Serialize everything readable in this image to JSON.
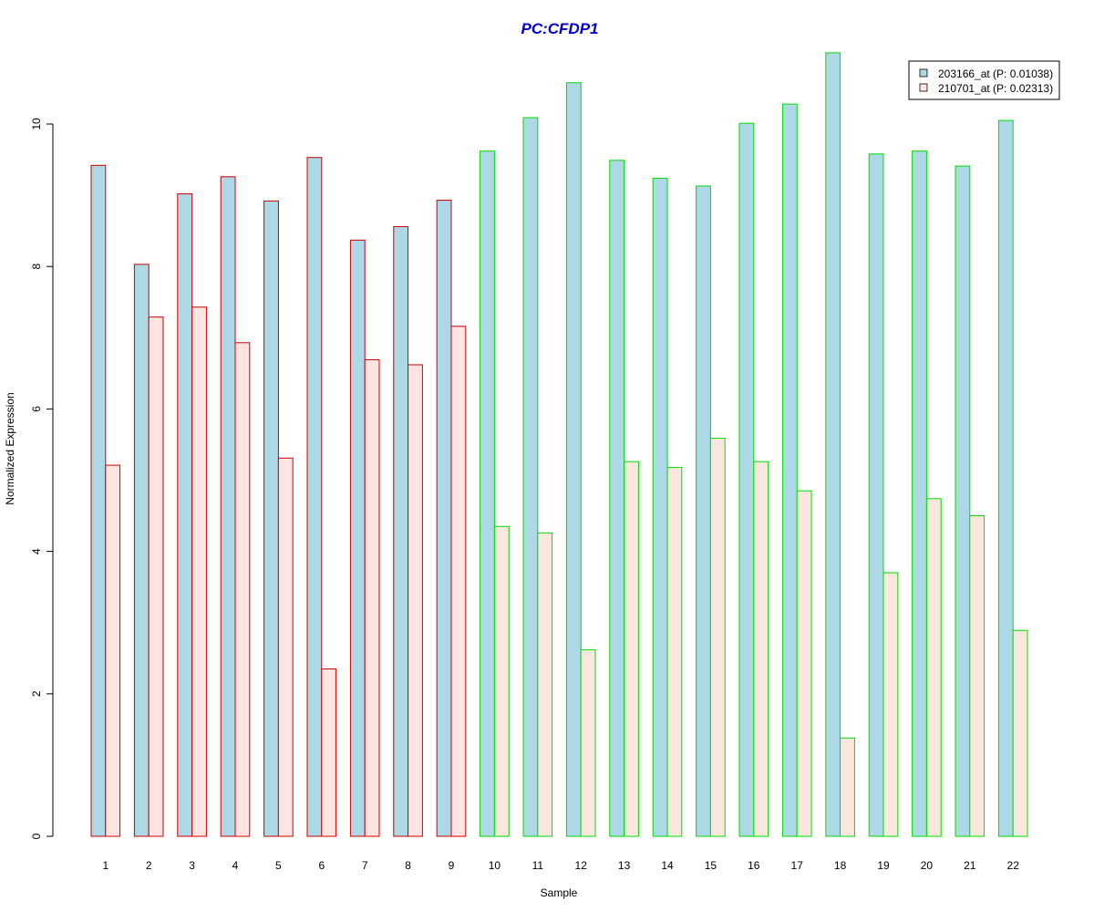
{
  "colors": {
    "title": "#0000cd",
    "series1_fill": "#add8e6",
    "series2_fill_group1": "#ffe4e1",
    "series2_fill_group2": "#fae8df",
    "group1_border": "#cc0000",
    "group2_border": "#00dd00",
    "axis": "#000000"
  },
  "chart_data": {
    "type": "bar",
    "title": "PC:CFDP1",
    "xlabel": "Sample",
    "ylabel": "Normalized Expression",
    "ylim": [
      0,
      11
    ],
    "yticks": [
      0,
      2,
      4,
      6,
      8,
      10
    ],
    "grid": false,
    "legend_position": "top-right",
    "categories": [
      "1",
      "2",
      "3",
      "4",
      "5",
      "6",
      "7",
      "8",
      "9",
      "10",
      "11",
      "12",
      "13",
      "14",
      "15",
      "16",
      "17",
      "18",
      "19",
      "20",
      "21",
      "22"
    ],
    "groups": [
      "group1",
      "group1",
      "group1",
      "group1",
      "group1",
      "group1",
      "group1",
      "group1",
      "group1",
      "group2",
      "group2",
      "group2",
      "group2",
      "group2",
      "group2",
      "group2",
      "group2",
      "group2",
      "group2",
      "group2",
      "group2",
      "group2"
    ],
    "series": [
      {
        "name": "203166_at (P: 0.01038)",
        "values": [
          9.42,
          8.03,
          9.02,
          9.26,
          8.92,
          9.53,
          8.37,
          8.56,
          8.93,
          9.62,
          10.09,
          10.58,
          9.49,
          9.24,
          9.13,
          10.01,
          10.28,
          11.0,
          9.58,
          9.62,
          9.41,
          10.05
        ]
      },
      {
        "name": "210701_at (P: 0.02313)",
        "values": [
          5.21,
          7.29,
          7.43,
          6.93,
          5.31,
          2.35,
          6.69,
          6.62,
          7.16,
          4.35,
          4.26,
          2.62,
          5.26,
          5.18,
          5.59,
          5.26,
          4.85,
          1.38,
          3.7,
          4.74,
          4.5,
          2.89
        ]
      }
    ]
  }
}
